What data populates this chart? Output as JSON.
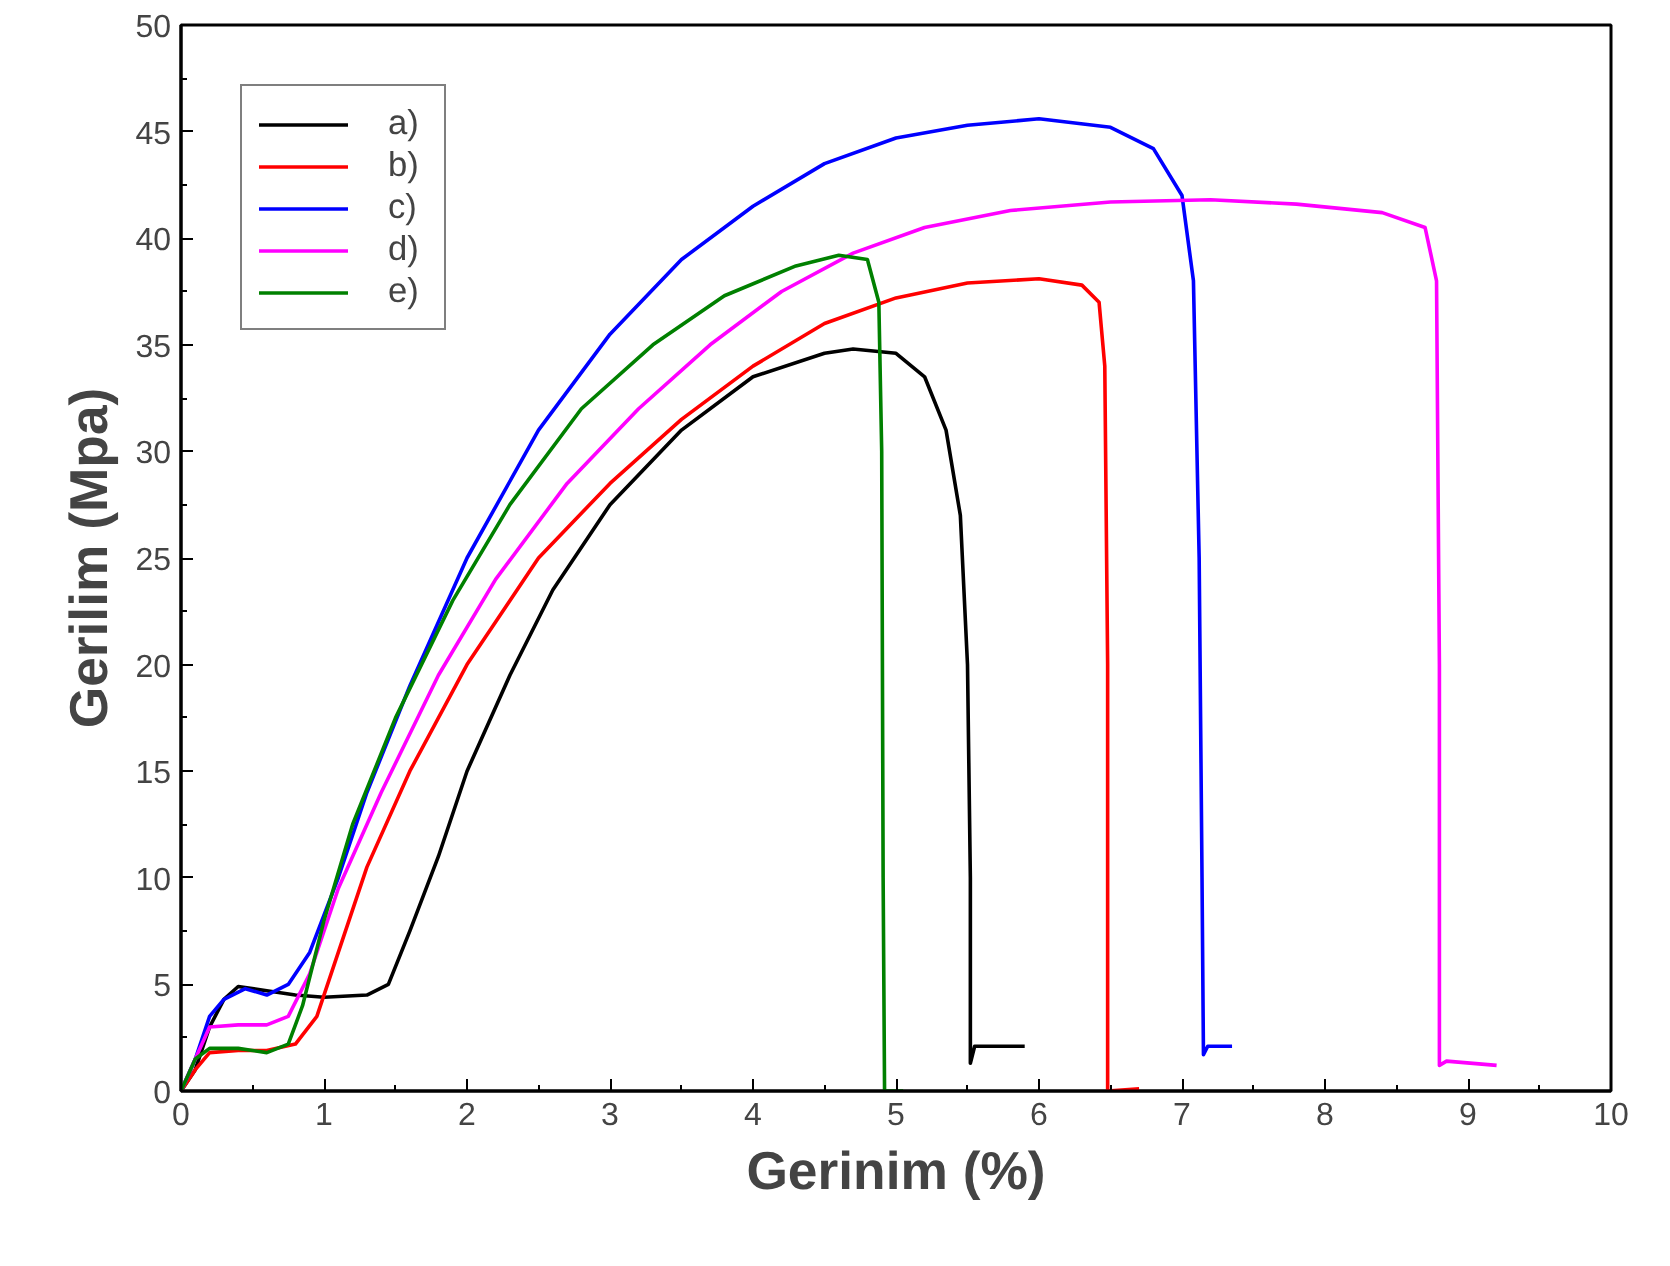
{
  "chart_data": {
    "type": "line",
    "xlabel": "Gerinim (%)",
    "ylabel": "Gerilim (Mpa)",
    "xlim": [
      0,
      10
    ],
    "ylim": [
      0,
      50
    ],
    "xticks": [
      0,
      1,
      2,
      3,
      4,
      5,
      6,
      7,
      8,
      9,
      10
    ],
    "yticks": [
      0,
      5,
      10,
      15,
      20,
      25,
      30,
      35,
      40,
      45,
      50
    ],
    "grid": false,
    "legend": "top left",
    "marker": "none",
    "line_style": "solid",
    "series": [
      {
        "name": "a)",
        "color": "#000000",
        "x": [
          0,
          0.1,
          0.2,
          0.3,
          0.4,
          0.6,
          0.8,
          1.0,
          1.3,
          1.45,
          1.6,
          1.8,
          2.0,
          2.3,
          2.6,
          3.0,
          3.5,
          4.0,
          4.5,
          4.7,
          5.0,
          5.2,
          5.35,
          5.45,
          5.5,
          5.52,
          5.52,
          5.55,
          5.9
        ],
        "values": [
          0,
          1,
          3,
          4.3,
          4.9,
          4.7,
          4.5,
          4.4,
          4.5,
          5,
          7.5,
          11,
          15,
          19.5,
          23.5,
          27.5,
          31,
          33.5,
          34.6,
          34.8,
          34.6,
          33.5,
          31,
          27,
          20,
          10,
          1.3,
          2.1,
          2.1
        ]
      },
      {
        "name": "b)",
        "color": "#ff0000",
        "x": [
          0,
          0.1,
          0.2,
          0.4,
          0.6,
          0.8,
          0.95,
          1.1,
          1.3,
          1.6,
          2.0,
          2.5,
          3.0,
          3.5,
          4.0,
          4.5,
          5.0,
          5.5,
          6.0,
          6.3,
          6.42,
          6.46,
          6.48,
          6.48,
          6.7
        ],
        "values": [
          0,
          1,
          1.8,
          1.9,
          1.9,
          2.2,
          3.5,
          6.5,
          10.5,
          15,
          20,
          25,
          28.5,
          31.5,
          34,
          36,
          37.2,
          37.9,
          38.1,
          37.8,
          37,
          34,
          20,
          0,
          0.1
        ]
      },
      {
        "name": "c)",
        "color": "#0000ff",
        "x": [
          0,
          0.1,
          0.2,
          0.3,
          0.45,
          0.6,
          0.75,
          0.9,
          1.1,
          1.3,
          1.6,
          2.0,
          2.5,
          3.0,
          3.5,
          4.0,
          4.5,
          5.0,
          5.5,
          6.0,
          6.5,
          6.8,
          7.0,
          7.08,
          7.12,
          7.14,
          7.15,
          7.18,
          7.35
        ],
        "values": [
          0,
          1.5,
          3.5,
          4.3,
          4.8,
          4.5,
          5,
          6.5,
          10,
          14,
          19,
          25,
          31,
          35.5,
          39,
          41.5,
          43.5,
          44.7,
          45.3,
          45.6,
          45.2,
          44.2,
          42,
          38,
          25,
          10,
          1.7,
          2.1,
          2.1
        ]
      },
      {
        "name": "d)",
        "color": "#ff00ff",
        "x": [
          0,
          0.1,
          0.2,
          0.4,
          0.6,
          0.75,
          0.9,
          1.1,
          1.4,
          1.8,
          2.2,
          2.7,
          3.2,
          3.7,
          4.2,
          4.7,
          5.2,
          5.8,
          6.5,
          7.2,
          7.8,
          8.4,
          8.7,
          8.78,
          8.8,
          8.8,
          8.85,
          9.2
        ],
        "values": [
          0,
          1.5,
          3,
          3.1,
          3.1,
          3.5,
          5.5,
          9.5,
          14,
          19.5,
          24,
          28.5,
          32,
          35,
          37.5,
          39.3,
          40.5,
          41.3,
          41.7,
          41.8,
          41.6,
          41.2,
          40.5,
          38,
          20,
          1.2,
          1.4,
          1.2
        ]
      },
      {
        "name": "e)",
        "color": "#008000",
        "x": [
          0,
          0.1,
          0.2,
          0.4,
          0.6,
          0.75,
          0.85,
          1.0,
          1.2,
          1.5,
          1.9,
          2.3,
          2.8,
          3.3,
          3.8,
          4.3,
          4.6,
          4.8,
          4.88,
          4.9,
          4.91,
          4.92,
          5.05
        ],
        "values": [
          0,
          1.5,
          2,
          2,
          1.8,
          2.2,
          4,
          8,
          12.5,
          17.5,
          23,
          27.5,
          32,
          35,
          37.3,
          38.7,
          39.2,
          39,
          37,
          30,
          10,
          0,
          0
        ]
      }
    ]
  }
}
